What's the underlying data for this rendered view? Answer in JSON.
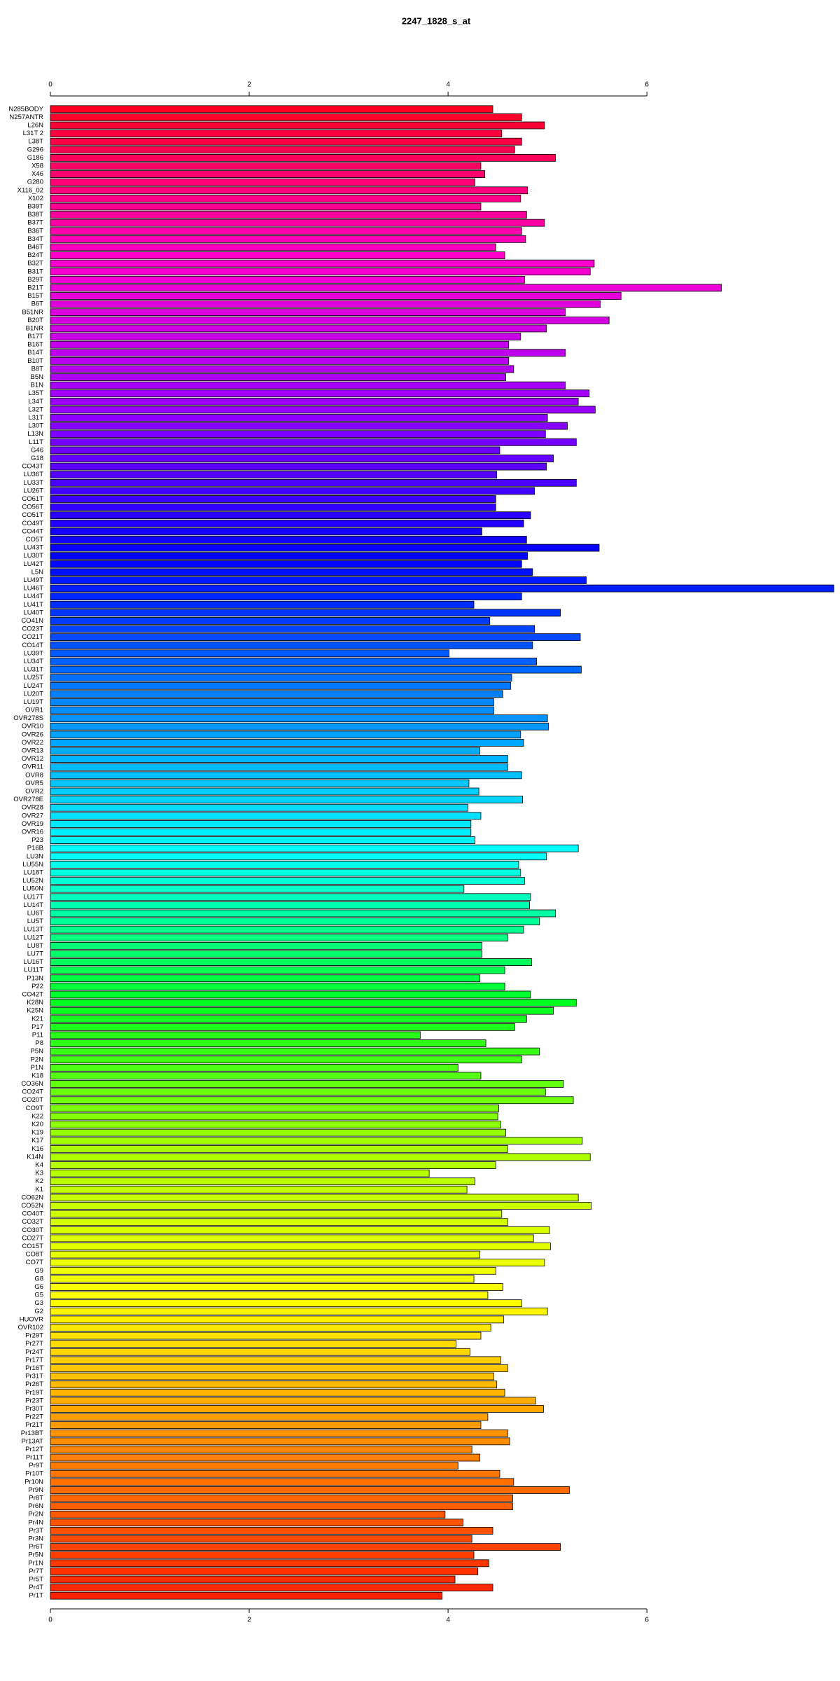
{
  "chart_data": {
    "type": "barh",
    "title": "2247_1828_s_at",
    "categories": [
      "N285BODY",
      "N257ANTR",
      "L26N",
      "L31T 2",
      "L38T",
      "G296",
      "G186",
      "X58",
      "X46",
      "G280",
      "X116_02",
      "X102",
      "B39T",
      "B38T",
      "B37T",
      "B36T",
      "B34T",
      "B46T",
      "B24T",
      "B32T",
      "B31T",
      "B29T",
      "B21T",
      "B15T",
      "B6T",
      "B51NR",
      "B20T",
      "B1NR",
      "B17T",
      "B16T",
      "B14T",
      "B10T",
      "B8T",
      "B5N",
      "B1N",
      "L35T",
      "L34T",
      "L32T",
      "L31T",
      "L30T",
      "L13N",
      "L11T",
      "G46",
      "G18",
      "CO43T",
      "LU36T",
      "LU33T",
      "LU26T",
      "CO61T",
      "CO56T",
      "CO51T",
      "CO49T",
      "CO44T",
      "CO5T",
      "LU43T",
      "LU30T",
      "LU42T",
      "L5N",
      "LU49T",
      "LU46T",
      "LU44T",
      "LU41T",
      "LU40T",
      "CO41N",
      "CO23T",
      "CO21T",
      "CO14T",
      "LU39T",
      "LU34T",
      "LU31T",
      "LU25T",
      "LU24T",
      "LU20T",
      "LU19T",
      "OVR1",
      "OVR278S",
      "OVR10",
      "OVR26",
      "OVR22",
      "OVR13",
      "OVR12",
      "OVR11",
      "OVR8",
      "OVR5",
      "OVR2",
      "OVR278E",
      "OVR28",
      "OVR27",
      "OVR19",
      "OVR16",
      "P23",
      "P16B",
      "LU3N",
      "LU55N",
      "LU18T",
      "LU52N",
      "LU50N",
      "LU17T",
      "LU14T",
      "LU6T",
      "LU5T",
      "LU13T",
      "LU12T",
      "LU8T",
      "LU7T",
      "LU16T",
      "LU11T",
      "P13N",
      "P22",
      "CO42T",
      "K28N",
      "K25N",
      "K21",
      "P17",
      "P11",
      "P8",
      "P5N",
      "P2N",
      "P1N",
      "K18",
      "CO36N",
      "CO24T",
      "CO20T",
      "CO9T",
      "K22",
      "K20",
      "K19",
      "K17",
      "K16",
      "K14N",
      "K4",
      "K3",
      "K2",
      "K1",
      "CO62N",
      "CO52N",
      "CO40T",
      "CO32T",
      "CO30T",
      "CO27T",
      "CO15T",
      "CO8T",
      "CO7T",
      "G9",
      "G8",
      "G6",
      "G5",
      "G3",
      "G2",
      "HUOVR",
      "OVR102",
      "Pr29T",
      "Pr27T",
      "Pr24T",
      "Pr17T",
      "Pr16T",
      "Pr31T",
      "Pr26T",
      "Pr19T",
      "Pr23T",
      "Pr30T",
      "Pr22T",
      "Pr21T",
      "Pr13BT",
      "Pr13AT",
      "Pr12T",
      "Pr11T",
      "Pr9T",
      "Pr10T",
      "Pr10N",
      "Pr9N",
      "Pr8T",
      "Pr6N",
      "Pr2N",
      "Pr4N",
      "Pr3T",
      "Pr3N",
      "Pr6T",
      "Pr5N",
      "Pr1N",
      "Pr7T",
      "Pr5T",
      "Pr4T",
      "Pr1T"
    ],
    "values": [
      4.45,
      4.74,
      4.97,
      4.54,
      4.74,
      4.67,
      5.08,
      4.33,
      4.37,
      4.27,
      4.8,
      4.73,
      4.33,
      4.79,
      4.97,
      4.74,
      4.78,
      4.48,
      4.57,
      5.47,
      5.43,
      4.77,
      6.75,
      5.74,
      5.53,
      5.18,
      5.62,
      4.99,
      4.73,
      4.61,
      5.18,
      4.61,
      4.66,
      4.58,
      5.18,
      5.42,
      5.31,
      5.48,
      5.0,
      5.2,
      4.98,
      5.29,
      4.52,
      5.06,
      4.99,
      4.49,
      5.29,
      4.87,
      4.48,
      4.48,
      4.83,
      4.76,
      4.34,
      4.79,
      5.52,
      4.8,
      4.74,
      4.85,
      5.39,
      7.88,
      4.74,
      4.26,
      5.13,
      4.42,
      4.87,
      5.33,
      4.85,
      4.01,
      4.89,
      5.34,
      4.64,
      4.63,
      4.55,
      4.46,
      4.46,
      5.0,
      5.01,
      4.73,
      4.76,
      4.32,
      4.6,
      4.6,
      4.74,
      4.21,
      4.31,
      4.75,
      4.2,
      4.33,
      4.23,
      4.23,
      4.27,
      5.31,
      4.99,
      4.71,
      4.73,
      4.77,
      4.16,
      4.83,
      4.82,
      5.08,
      4.92,
      4.76,
      4.6,
      4.34,
      4.34,
      4.84,
      4.57,
      4.32,
      4.57,
      4.83,
      5.29,
      5.06,
      4.79,
      4.67,
      3.72,
      4.38,
      4.92,
      4.74,
      4.1,
      4.33,
      5.16,
      4.98,
      5.26,
      4.51,
      4.5,
      4.53,
      4.58,
      5.35,
      4.6,
      5.43,
      4.48,
      3.81,
      4.27,
      4.19,
      5.31,
      5.44,
      4.54,
      4.6,
      5.02,
      4.86,
      5.03,
      4.32,
      4.97,
      4.48,
      4.26,
      4.55,
      4.4,
      4.74,
      5.0,
      4.56,
      4.43,
      4.33,
      4.08,
      4.22,
      4.53,
      4.6,
      4.46,
      4.49,
      4.57,
      4.88,
      4.96,
      4.4,
      4.33,
      4.6,
      4.62,
      4.24,
      4.32,
      4.1,
      4.52,
      4.66,
      5.22,
      4.65,
      4.65,
      3.97,
      4.15,
      4.45,
      4.24,
      5.13,
      4.26,
      4.41,
      4.3,
      4.07,
      4.45,
      3.94
    ],
    "colors": [
      "#ff0022",
      "#ff00cc",
      "#9900ff",
      "#0000ff",
      "#0088ff",
      "#00ffff",
      "#00ff22",
      "#aaff00",
      "#ffff00",
      "#ff8800",
      "#ff2200"
    ],
    "xlim": [
      0,
      7.9
    ],
    "xticks": [
      0,
      2,
      4,
      6
    ]
  }
}
